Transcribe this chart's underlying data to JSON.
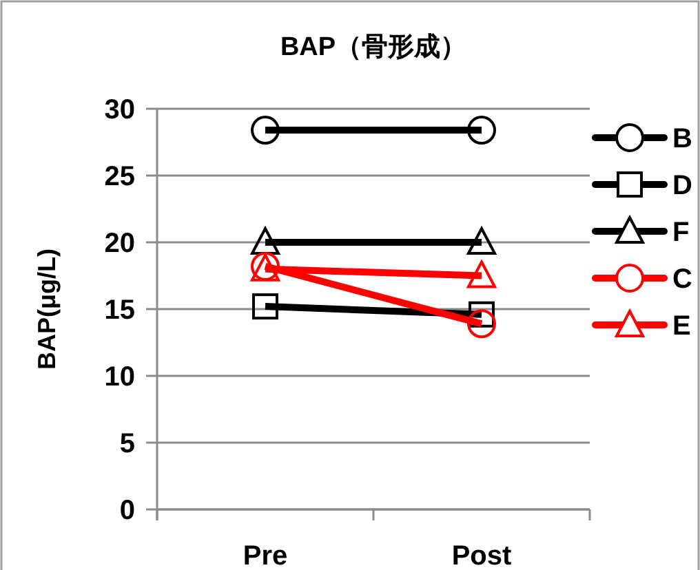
{
  "chart_data": {
    "type": "line",
    "title": "BAP（骨形成）",
    "ylabel": "BAP(μg/L)",
    "categories": [
      "Pre",
      "Post"
    ],
    "series": [
      {
        "name": "B",
        "color": "#000000",
        "marker": "circle",
        "values": [
          28.4,
          28.4
        ]
      },
      {
        "name": "D",
        "color": "#000000",
        "marker": "square",
        "values": [
          15.2,
          14.6
        ]
      },
      {
        "name": "F",
        "color": "#000000",
        "marker": "triangle",
        "values": [
          20,
          20
        ]
      },
      {
        "name": "C",
        "color": "#ff0000",
        "marker": "circle",
        "values": [
          18.2,
          13.9
        ]
      },
      {
        "name": "E",
        "color": "#ff0000",
        "marker": "triangle",
        "values": [
          18.0,
          17.5
        ]
      }
    ],
    "ylim": [
      0,
      30
    ],
    "yticks": [
      0,
      5,
      10,
      15,
      20,
      25,
      30
    ],
    "grid": "y",
    "legend": "right",
    "line_style": "solid"
  }
}
